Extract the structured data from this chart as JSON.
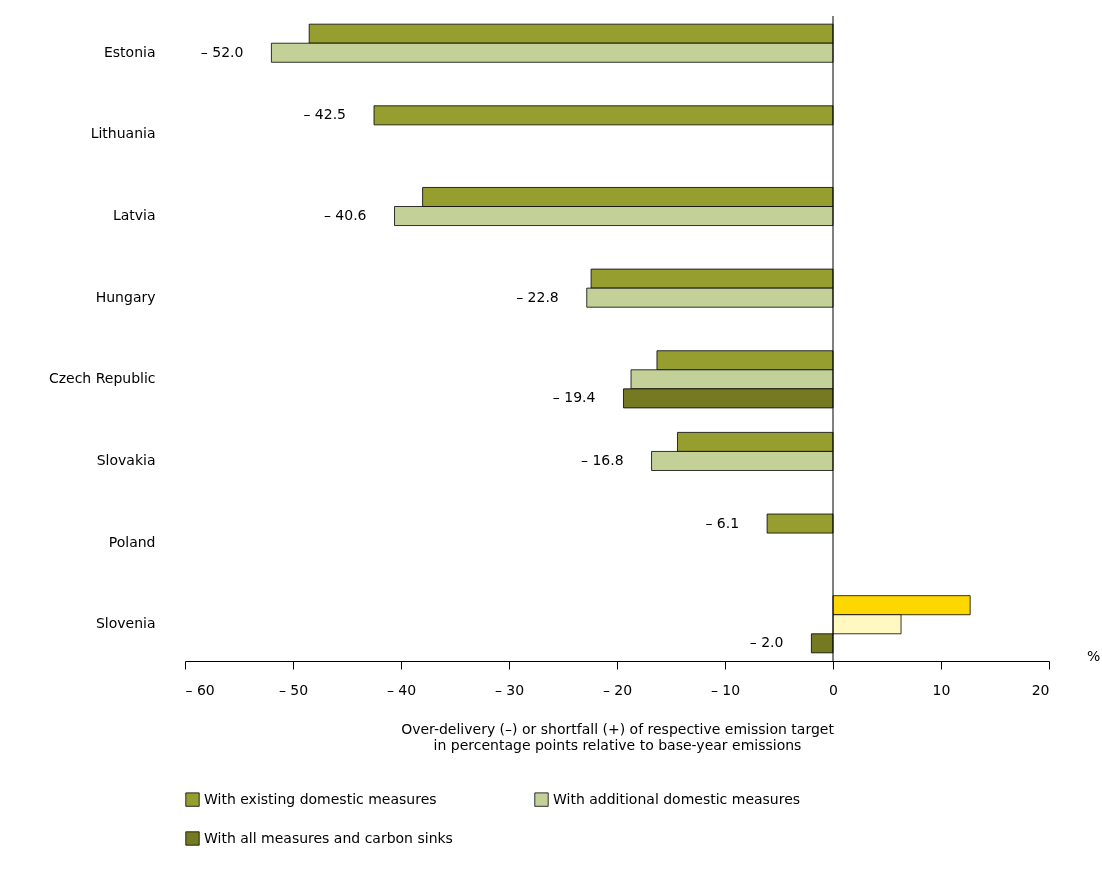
{
  "chart_data": {
    "type": "bar",
    "orientation": "horizontal",
    "categories": [
      "Estonia",
      "Lithuania",
      "Latvia",
      "Hungary",
      "Czech Republic",
      "Slovakia",
      "Poland",
      "Slovenia"
    ],
    "series": [
      {
        "name": "With existing domestic measures",
        "color": "#959e2e",
        "colors": [
          "#959e2e",
          "#959e2e",
          "#959e2e",
          "#959e2e",
          "#959e2e",
          "#959e2e",
          "#959e2e",
          "#ffd700"
        ],
        "values": [
          -48.5,
          -42.5,
          -38.0,
          -22.4,
          -16.3,
          -14.4,
          -6.1,
          12.7
        ],
        "value_labels": [
          null,
          "– 42.5",
          null,
          null,
          null,
          null,
          "– 6.1",
          null
        ]
      },
      {
        "name": "With additional domestic measures",
        "color": "#c3d199",
        "colors": [
          "#c3d199",
          "#c3d199",
          "#c3d199",
          "#c3d199",
          "#c3d199",
          "#c3d199",
          "#c3d199",
          "#fff8c0"
        ],
        "values": [
          -52.0,
          null,
          -40.6,
          -22.8,
          -18.7,
          -16.8,
          null,
          6.3
        ],
        "value_labels": [
          "– 52.0",
          null,
          "– 40.6",
          "– 22.8",
          null,
          "– 16.8",
          null,
          null
        ]
      },
      {
        "name": "With all measures and carbon sinks",
        "color": "#757a22",
        "colors": [
          "#757a22",
          "#757a22",
          "#757a22",
          "#757a22",
          "#757a22",
          "#757a22",
          "#757a22",
          "#757a22"
        ],
        "values": [
          null,
          null,
          null,
          null,
          -19.4,
          null,
          null,
          -2.0
        ],
        "value_labels": [
          null,
          null,
          null,
          null,
          "– 19.4",
          null,
          null,
          "– 2.0"
        ]
      }
    ],
    "xlim": [
      -60,
      20
    ],
    "xticks": [
      {
        "value": -60,
        "label": "– 60"
      },
      {
        "value": -50,
        "label": "– 50"
      },
      {
        "value": -40,
        "label": "– 40"
      },
      {
        "value": -30,
        "label": "– 30"
      },
      {
        "value": -20,
        "label": "– 20"
      },
      {
        "value": -10,
        "label": "– 10"
      },
      0,
      10,
      20
    ],
    "xlabel": "Over-delivery (–) or shortfall (+) of respective emission target\nin percentage points relative to base-year emissions",
    "annotations": [
      "%"
    ],
    "ref_lines": [
      {
        "axis": "x",
        "value": 0,
        "color": "#000000"
      }
    ],
    "legend": "bottom",
    "grid": false
  }
}
